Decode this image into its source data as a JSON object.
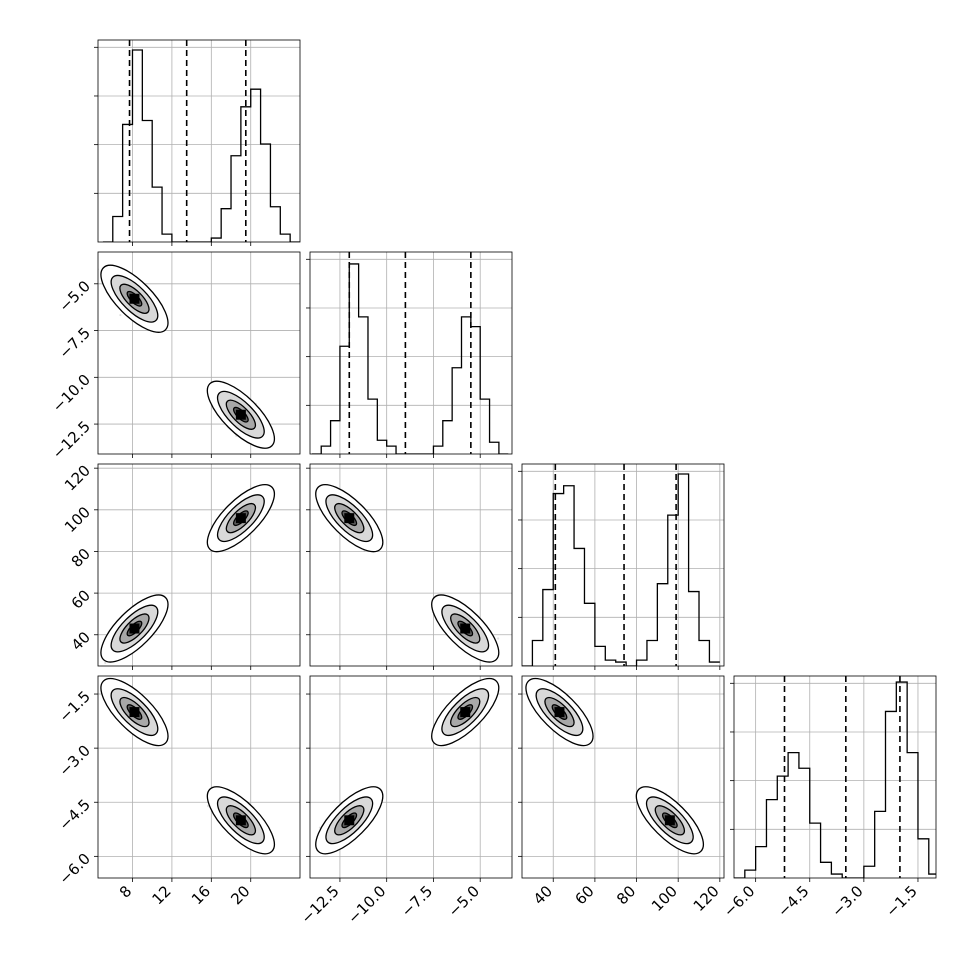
{
  "chart_data": {
    "type": "corner",
    "title": "",
    "parameters": [
      {
        "label": "",
        "range": [
          4.5,
          25
        ],
        "ticks": [
          8,
          12,
          16,
          20
        ],
        "tick_labels": [
          "8",
          "12",
          "16",
          "20"
        ]
      },
      {
        "label": "",
        "range": [
          -14.1,
          -3.3
        ],
        "ticks": [
          -12.5,
          -10.0,
          -7.5,
          -5.0
        ],
        "tick_labels": [
          "−12.5",
          "−10.0",
          "−7.5",
          "−5.0"
        ]
      },
      {
        "label": "",
        "range": [
          25,
          122
        ],
        "ticks": [
          40,
          60,
          80,
          100,
          120
        ],
        "tick_labels": [
          "40",
          "60",
          "80",
          "100",
          "120"
        ]
      },
      {
        "label": "",
        "range": [
          -6.6,
          -1.0
        ],
        "ticks": [
          -6.0,
          -4.5,
          -3.0,
          -1.5
        ],
        "tick_labels": [
          "−6.0",
          "−4.5",
          "−3.0",
          "−1.5"
        ]
      }
    ],
    "grid": true,
    "quantile_lines": [
      [
        7.7,
        13.5,
        19.5
      ],
      [
        -12.0,
        -9.0,
        -5.5
      ],
      [
        41,
        74,
        99
      ],
      [
        -5.2,
        -3.5,
        -2.0
      ]
    ],
    "histograms": [
      {
        "bins": [
          5.0,
          6.0,
          7.0,
          8.0,
          9.0,
          10.0,
          11.0,
          12.0,
          13.0,
          14.0,
          15.0,
          16.0,
          17.0,
          18.0,
          19.0,
          20.0,
          21.0,
          22.0,
          23.0,
          24.0
        ],
        "counts": [
          0.0,
          0.13,
          0.6,
          0.98,
          0.62,
          0.28,
          0.04,
          0.0,
          0.0,
          0.0,
          0.0,
          0.02,
          0.17,
          0.44,
          0.69,
          0.78,
          0.5,
          0.18,
          0.04,
          0.0
        ]
      },
      {
        "bins": [
          -14.0,
          -13.5,
          -13.0,
          -12.5,
          -12.0,
          -11.5,
          -11.0,
          -10.5,
          -10.0,
          -9.5,
          -9.0,
          -8.5,
          -8.0,
          -7.5,
          -7.0,
          -6.5,
          -6.0,
          -5.5,
          -5.0,
          -4.5,
          -4.0,
          -3.5
        ],
        "counts": [
          0.0,
          0.04,
          0.17,
          0.55,
          0.97,
          0.7,
          0.28,
          0.07,
          0.04,
          0.0,
          0.0,
          0.0,
          0.0,
          0.04,
          0.17,
          0.44,
          0.7,
          0.65,
          0.28,
          0.06,
          0.0
        ]
      },
      {
        "bins": [
          25,
          30,
          35,
          40,
          45,
          50,
          55,
          60,
          65,
          70,
          75,
          80,
          85,
          90,
          95,
          100,
          105,
          110,
          115,
          120
        ],
        "counts": [
          0.0,
          0.13,
          0.39,
          0.88,
          0.92,
          0.6,
          0.32,
          0.1,
          0.03,
          0.02,
          0.0,
          0.03,
          0.13,
          0.42,
          0.77,
          0.98,
          0.38,
          0.13,
          0.02
        ]
      },
      {
        "bins": [
          -6.6,
          -6.3,
          -6.0,
          -5.7,
          -5.4,
          -5.1,
          -4.8,
          -4.5,
          -4.2,
          -3.9,
          -3.6,
          -3.3,
          -3.0,
          -2.7,
          -2.4,
          -2.1,
          -1.8,
          -1.5,
          -1.2,
          -1.0
        ],
        "counts": [
          0.0,
          0.04,
          0.16,
          0.4,
          0.52,
          0.64,
          0.56,
          0.28,
          0.08,
          0.02,
          0.0,
          0.0,
          0.06,
          0.34,
          0.85,
          1.0,
          0.64,
          0.2,
          0.02
        ]
      }
    ],
    "modes": [
      {
        "centers": [
          8.2,
          -5.8,
          43,
          -2.0
        ],
        "weight": 0.5
      },
      {
        "centers": [
          19.0,
          -12.0,
          96,
          -5.0
        ],
        "weight": 0.5
      }
    ]
  }
}
